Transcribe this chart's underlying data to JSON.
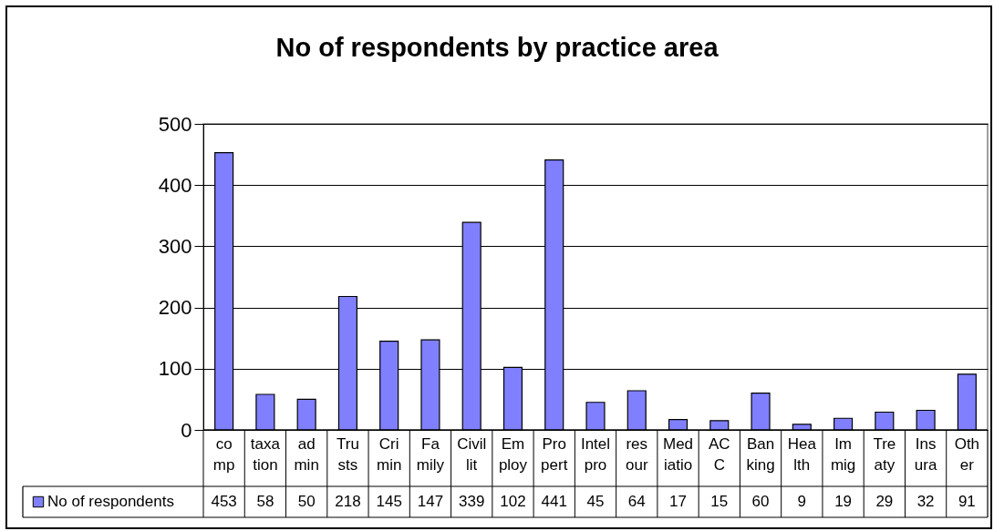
{
  "chart_data": {
    "type": "bar",
    "title": "No of respondents by practice area",
    "categories": [
      "co\nmp",
      "taxa\ntion",
      "ad\nmin",
      "Tru\nsts",
      "Cri\nmin",
      "Fa\nmily",
      "Civil\nlit",
      "Em\nploy",
      "Pro\npert",
      "Intel\npro",
      "res\nour",
      "Med\niatio",
      "AC\nC",
      "Ban\nking",
      "Hea\nlth",
      "Im\nmig",
      "Tre\naty",
      "Ins\nura",
      "Oth\ner"
    ],
    "series": [
      {
        "name": "No of respondents",
        "color": "#8080ff",
        "values": [
          453,
          58,
          50,
          218,
          145,
          147,
          339,
          102,
          441,
          45,
          64,
          17,
          15,
          60,
          9,
          19,
          29,
          32,
          91
        ]
      }
    ],
    "ylim": [
      0,
      500
    ],
    "yticks": [
      0,
      100,
      200,
      300,
      400,
      500
    ],
    "grid": "y",
    "legend": "bottom left",
    "data_labels": true
  }
}
